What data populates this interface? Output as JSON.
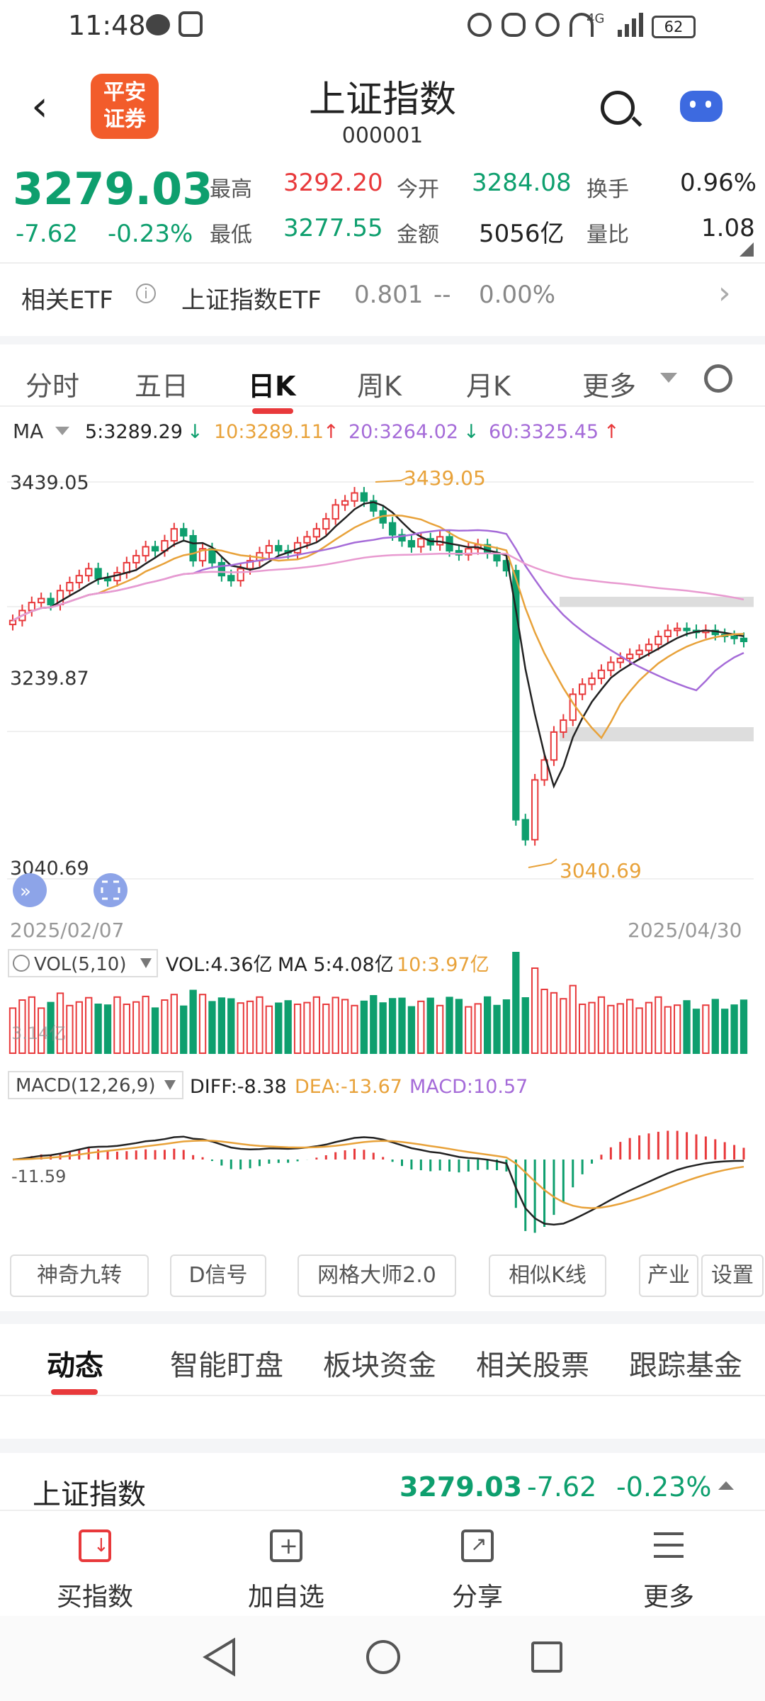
{
  "status_bar": {
    "time": "11:48",
    "signal": "4G",
    "battery": "62"
  },
  "header": {
    "logo_text_line1": "平安",
    "logo_text_line2": "证券",
    "title": "上证指数",
    "code": "000001"
  },
  "quote": {
    "price": "3279.03",
    "change": "-7.62",
    "change_pct": "-0.23%",
    "high_label": "最高",
    "high": "3292.20",
    "low_label": "最低",
    "low": "3277.55",
    "open_label": "今开",
    "open": "3284.08",
    "amount_label": "金额",
    "amount": "5056亿",
    "turnover_label": "换手",
    "turnover": "0.96%",
    "vol_ratio_label": "量比",
    "vol_ratio": "1.08"
  },
  "etf": {
    "label": "相关ETF",
    "name": "上证指数ETF",
    "price": "0.801",
    "change": "--",
    "change_pct": "0.00%"
  },
  "period_tabs": [
    "分时",
    "五日",
    "日K",
    "周K",
    "月K",
    "更多"
  ],
  "active_period": "日K",
  "ma_legend": {
    "label": "MA",
    "ma5": "5:3289.29",
    "ma10": "10:3289.11",
    "ma20": "20:3264.02",
    "ma60": "60:3325.45"
  },
  "price_axis": {
    "top": "3439.05",
    "mid": "3239.87",
    "bottom": "3040.69"
  },
  "annotations": {
    "high_mark": "3439.05",
    "low_mark": "3040.69"
  },
  "date_range": {
    "start": "2025/02/07",
    "end": "2025/04/30"
  },
  "volume_legend": {
    "label": "VOL(5,10)",
    "vol": "VOL:4.36亿",
    "ma5": "MA 5:4.08亿",
    "ma10": "10:3.97亿"
  },
  "macd_legend": {
    "label": "MACD(12,26,9)",
    "diff": "DIFF:-8.38",
    "dea": "DEA:-13.67",
    "macd": "MACD:10.57",
    "axis_label": "-11.59"
  },
  "vol_axis_label": "3.14亿",
  "tools": [
    "神奇九转",
    "D信号",
    "网格大师2.0",
    "相似K线",
    "产业",
    "设置"
  ],
  "sub_tabs": [
    "动态",
    "智能盯盘",
    "板块资金",
    "相关股票",
    "跟踪基金"
  ],
  "summary": {
    "name": "上证指数",
    "price": "3279.03",
    "change": "-7.62",
    "change_pct": "-0.23%"
  },
  "actions": [
    "买指数",
    "加自选",
    "分享",
    "更多"
  ],
  "colors": {
    "up": "#e8393b",
    "down": "#0e9f6e",
    "ma5": "#222222",
    "ma10": "#e8a23a",
    "ma20": "#a56bd8",
    "ma60": "#e89ad0",
    "brand": "#f25c2b"
  },
  "chart_data": {
    "type": "candlestick",
    "x_range": [
      "2025/02/07",
      "2025/04/30"
    ],
    "ylim": [
      3040.69,
      3439.05
    ],
    "closes": [
      3300,
      3310,
      3318,
      3322,
      3316,
      3330,
      3338,
      3345,
      3352,
      3342,
      3340,
      3348,
      3358,
      3365,
      3374,
      3370,
      3380,
      3392,
      3385,
      3360,
      3372,
      3358,
      3345,
      3340,
      3352,
      3360,
      3368,
      3375,
      3370,
      3368,
      3378,
      3384,
      3392,
      3402,
      3416,
      3420,
      3428,
      3420,
      3410,
      3398,
      3386,
      3380,
      3374,
      3382,
      3376,
      3384,
      3370,
      3366,
      3372,
      3376,
      3368,
      3360,
      3350,
      3100,
      3080,
      3140,
      3160,
      3188,
      3200,
      3226,
      3236,
      3242,
      3250,
      3258,
      3262,
      3266,
      3270,
      3276,
      3284,
      3290,
      3292,
      3290,
      3288,
      3290,
      3286,
      3284,
      3282,
      3279
    ]
  }
}
